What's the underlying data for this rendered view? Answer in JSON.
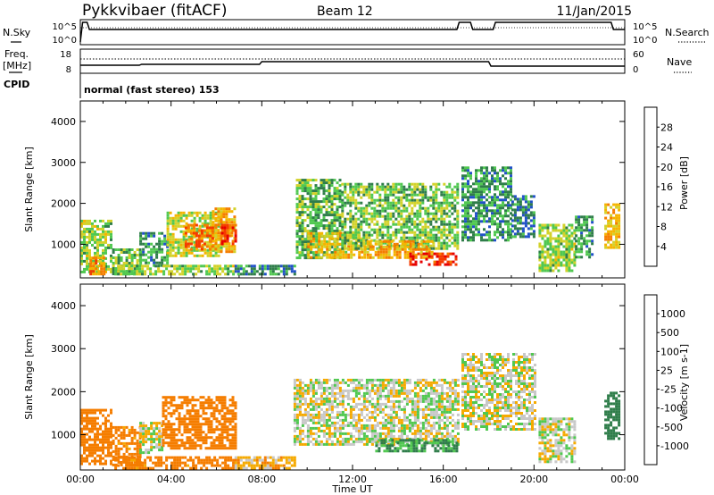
{
  "header": {
    "radar": "Pykkvibaer (fitACF)",
    "beam": "Beam 12",
    "date": "11/Jan/2015"
  },
  "summary_panels": {
    "nsky": {
      "left_label": "N.Sky",
      "right_label": "N.Search",
      "left_ticks": [
        "10^5",
        "10^0"
      ],
      "right_ticks": [
        "10^5",
        "10^0"
      ]
    },
    "freq": {
      "left_label_1": "Freq.",
      "left_label_2": "[MHz]",
      "right_label": "Nave",
      "left_ticks": [
        "18",
        "8"
      ],
      "right_ticks": [
        "60",
        "0"
      ]
    },
    "cpid": {
      "label": "CPID",
      "value": "normal (fast stereo) 153"
    }
  },
  "colors": {
    "power_scale": [
      "#0000ff",
      "#2050c8",
      "#2f7d4a",
      "#50c850",
      "#d2d22a",
      "#f5b400",
      "#f57d00",
      "#f53a00",
      "#e60000"
    ],
    "velocity_scale": [
      "#e60000",
      "#f53a00",
      "#f57d00",
      "#f5aa00",
      "#c8c8c8",
      "#c8c8c8",
      "#50c850",
      "#2f7d4a",
      "#2050c8",
      "#1e1ec8"
    ]
  },
  "chart_data": [
    {
      "type": "heatmap",
      "name": "power",
      "xlabel": "",
      "ylabel": "Slant Range [km]",
      "xlim": [
        0,
        24
      ],
      "ylim": [
        180,
        4500
      ],
      "y_ticks": [
        "1000",
        "2000",
        "3000",
        "4000"
      ],
      "colorbar_label": "Power [dB]",
      "colorbar_ticks": [
        "4",
        "8",
        "12",
        "16",
        "20",
        "24",
        "28"
      ],
      "colorbar_range": [
        0,
        32
      ],
      "regions": [
        {
          "t0": 0.0,
          "t1": 1.3,
          "r0": 300,
          "r1": 1600,
          "level": 14
        },
        {
          "t0": 0.4,
          "t1": 1.0,
          "r0": 300,
          "r1": 700,
          "level": 22
        },
        {
          "t0": 1.4,
          "t1": 2.6,
          "r0": 300,
          "r1": 900,
          "level": 12
        },
        {
          "t0": 2.6,
          "t1": 3.8,
          "r0": 500,
          "r1": 1300,
          "level": 10
        },
        {
          "t0": 3.8,
          "t1": 6.2,
          "r0": 700,
          "r1": 1800,
          "level": 16
        },
        {
          "t0": 4.6,
          "t1": 5.8,
          "r0": 900,
          "r1": 1500,
          "level": 24
        },
        {
          "t0": 5.8,
          "t1": 6.8,
          "r0": 800,
          "r1": 1900,
          "level": 20
        },
        {
          "t0": 6.2,
          "t1": 6.8,
          "r0": 1000,
          "r1": 1500,
          "level": 27
        },
        {
          "t0": 1.5,
          "t1": 6.8,
          "r0": 250,
          "r1": 500,
          "level": 14
        },
        {
          "t0": 6.8,
          "t1": 9.5,
          "r0": 250,
          "r1": 500,
          "level": 9
        },
        {
          "t0": 9.5,
          "t1": 11.5,
          "r0": 700,
          "r1": 2600,
          "level": 12
        },
        {
          "t0": 10.0,
          "t1": 12.5,
          "r0": 700,
          "r1": 1300,
          "level": 18
        },
        {
          "t0": 11.5,
          "t1": 16.6,
          "r0": 900,
          "r1": 2500,
          "level": 13
        },
        {
          "t0": 12.5,
          "t1": 15.5,
          "r0": 700,
          "r1": 1100,
          "level": 20
        },
        {
          "t0": 14.5,
          "t1": 16.6,
          "r0": 500,
          "r1": 800,
          "level": 28
        },
        {
          "t0": 16.8,
          "t1": 19.0,
          "r0": 1100,
          "r1": 2900,
          "level": 10
        },
        {
          "t0": 19.0,
          "t1": 20.0,
          "r0": 1200,
          "r1": 2200,
          "level": 8
        },
        {
          "t0": 20.2,
          "t1": 21.8,
          "r0": 350,
          "r1": 1500,
          "level": 14
        },
        {
          "t0": 21.8,
          "t1": 22.6,
          "r0": 700,
          "r1": 1700,
          "level": 10
        },
        {
          "t0": 23.1,
          "t1": 23.8,
          "r0": 900,
          "r1": 2000,
          "level": 19
        }
      ]
    },
    {
      "type": "heatmap",
      "name": "velocity",
      "xlabel": "Time UT",
      "ylabel": "Slant Range [km]",
      "xlim": [
        0,
        24
      ],
      "ylim": [
        180,
        4500
      ],
      "x_ticks": [
        "00:00",
        "04:00",
        "08:00",
        "12:00",
        "16:00",
        "20:00",
        "00:00"
      ],
      "y_ticks": [
        "1000",
        "2000",
        "3000",
        "4000"
      ],
      "colorbar_label": "Velocity [m s-1]",
      "colorbar_ticks": [
        "1000",
        "500",
        "100",
        "25",
        "-25",
        "-100",
        "-500",
        "-1000"
      ],
      "colorbar_range": [
        -1000,
        1000
      ],
      "regions": [
        {
          "t0": 0.0,
          "t1": 1.4,
          "r0": 300,
          "r1": 1600,
          "vel": -300
        },
        {
          "t0": 1.4,
          "t1": 2.6,
          "r0": 300,
          "r1": 1200,
          "vel": -150
        },
        {
          "t0": 2.6,
          "t1": 3.6,
          "r0": 600,
          "r1": 1300,
          "vel": 0
        },
        {
          "t0": 3.6,
          "t1": 6.8,
          "r0": 700,
          "r1": 1900,
          "vel": -250
        },
        {
          "t0": 1.5,
          "t1": 6.8,
          "r0": 250,
          "r1": 500,
          "vel": -150
        },
        {
          "t0": 6.8,
          "t1": 9.4,
          "r0": 250,
          "r1": 500,
          "vel": -60
        },
        {
          "t0": 9.4,
          "t1": 16.6,
          "r0": 800,
          "r1": 2300,
          "vel": 0
        },
        {
          "t0": 13.0,
          "t1": 16.6,
          "r0": 600,
          "r1": 900,
          "vel": 110
        },
        {
          "t0": 16.8,
          "t1": 20.0,
          "r0": 1100,
          "r1": 2900,
          "vel": 0
        },
        {
          "t0": 20.2,
          "t1": 21.8,
          "r0": 400,
          "r1": 1400,
          "vel": 0
        },
        {
          "t0": 23.1,
          "t1": 23.8,
          "r0": 900,
          "r1": 2000,
          "vel": 200
        }
      ]
    }
  ]
}
